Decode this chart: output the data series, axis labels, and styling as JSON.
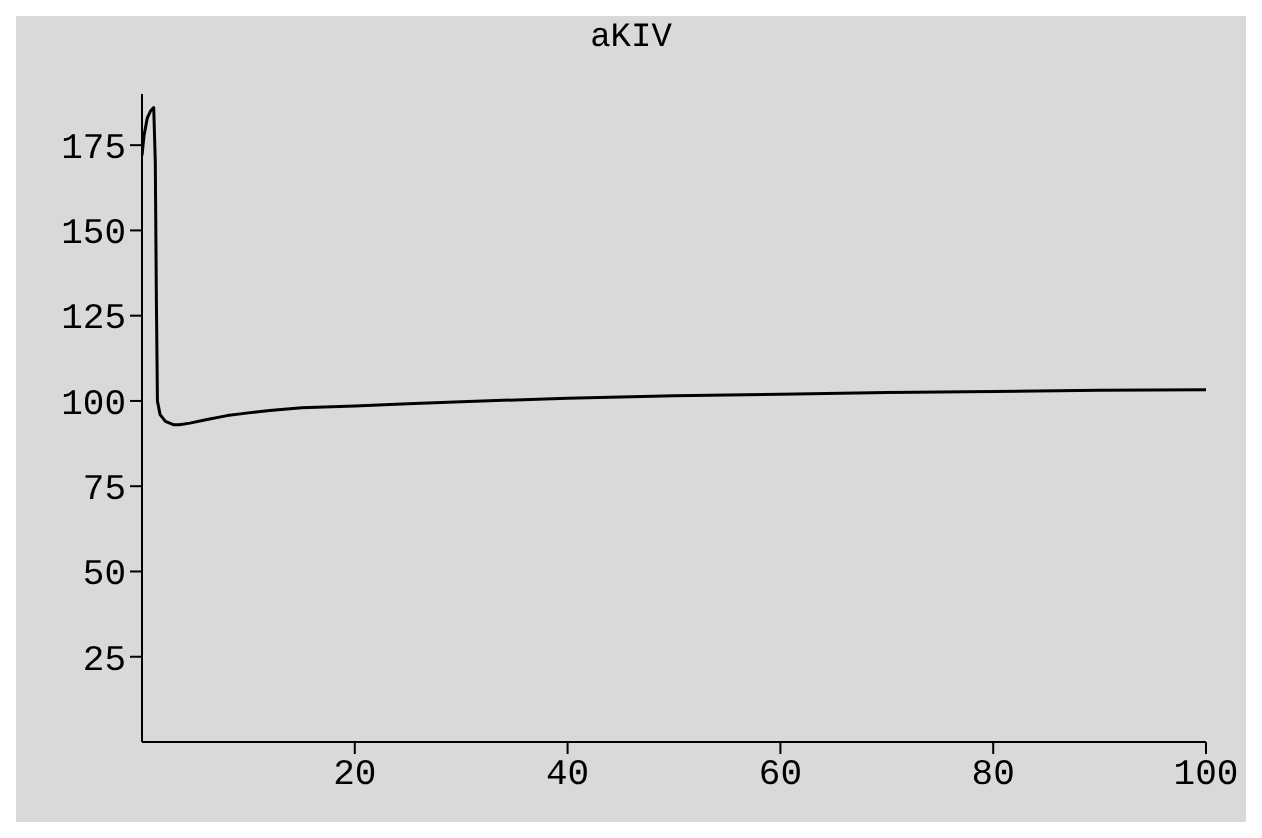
{
  "chart_data": {
    "type": "line",
    "title": "aKIV",
    "x": [
      0,
      0.2,
      0.5,
      0.8,
      1.1,
      1.25,
      1.35,
      1.45,
      1.7,
      2.2,
      3,
      3.5,
      4.5,
      6,
      8,
      10,
      12,
      15,
      20,
      25,
      30,
      40,
      50,
      60,
      70,
      80,
      90,
      100
    ],
    "series": [
      {
        "color": "#000000",
        "values": [
          172,
          178,
          183,
          185,
          186,
          170,
          130,
          100,
          96,
          94,
          93,
          93,
          93.5,
          94.5,
          95.7,
          96.5,
          97.2,
          98,
          98.5,
          99.2,
          99.8,
          100.8,
          101.5,
          102,
          102.5,
          102.8,
          103.1,
          103.3
        ]
      }
    ],
    "xlim": [
      0,
      100
    ],
    "xticks": [
      20,
      40,
      60,
      80,
      100
    ],
    "ylim": [
      0,
      190
    ],
    "yticks": [
      25,
      50,
      75,
      100,
      125,
      150,
      175
    ],
    "marker": "none",
    "line_style": "solid"
  }
}
